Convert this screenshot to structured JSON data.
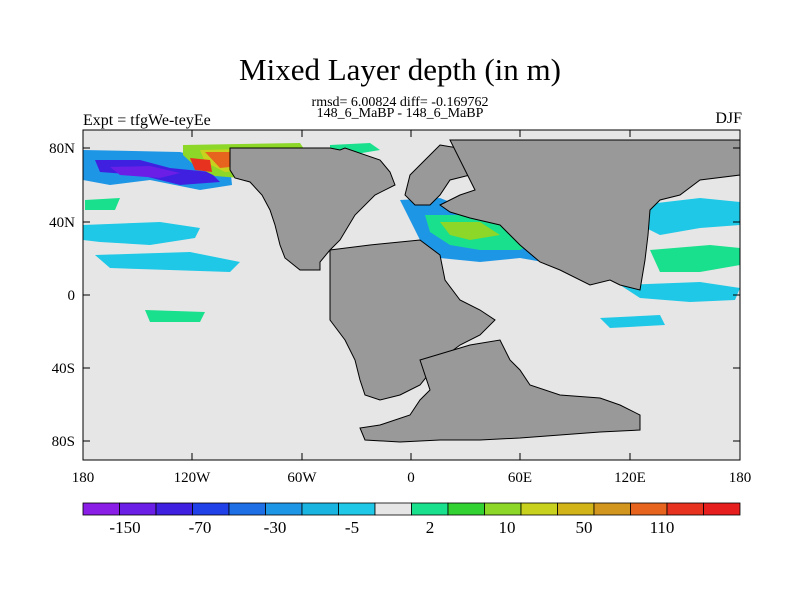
{
  "title": "Mixed Layer depth (in m)",
  "stats": "rmsd= 6.00824 diff= -0.169762",
  "subtitle": "148_6_MaBP - 148_6_MaBP",
  "left_label": "Expt = tfgWe-teyEe",
  "right_label": "DJF",
  "y_ticks": [
    "80N",
    "40N",
    "0",
    "40S",
    "80S"
  ],
  "x_ticks": [
    "180",
    "120W",
    "60W",
    "0",
    "60E",
    "120E",
    "180"
  ],
  "colorbar": {
    "labels": [
      "-150",
      "-70",
      "-30",
      "-5",
      "2",
      "10",
      "50",
      "110"
    ],
    "colors": [
      "#8a1ee6",
      "#6a1ee6",
      "#4020e0",
      "#2040e8",
      "#1e6ee6",
      "#1e96e6",
      "#19b4e0",
      "#1ec8e6",
      "#e6e6e6",
      "#19e08c",
      "#32d232",
      "#8cd728",
      "#c8d21e",
      "#d2b419",
      "#d2961e",
      "#e6641e",
      "#e6321e",
      "#e61e1e"
    ]
  },
  "colors": {
    "land": "#999999",
    "ocean": "#e6e6e6",
    "frame": "#000000"
  }
}
